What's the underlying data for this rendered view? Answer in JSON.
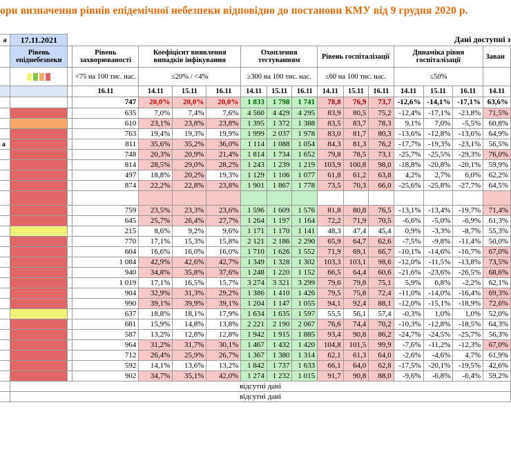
{
  "title": "ори визначення рівнів епідемічної небезпеки відповідно до постанови КМУ від 9 грудня 2020 р.",
  "date_label": "17.11.2021",
  "available_label": "Дані доступні з",
  "headers": {
    "first_col": "а",
    "level": "Рівень епіднебезпеки",
    "incidence": "Рівень захворюваності",
    "detection": "Коефіцієнт виявлення випадків інфікування",
    "testing": "Охоплення тестуванням",
    "hosp": "Рівень госпіталізації",
    "dynamics": "Динаміка рівня госпіталізації",
    "last": "Заван"
  },
  "thresholds": {
    "incidence": "<75 на 100 тис. нас.",
    "detection": "≤20% / <4%",
    "testing": "≥300 на 100 тис. нас.",
    "hosp": "≤60 на 100 тис. нас.",
    "dynamics": "≤50%"
  },
  "dates": {
    "incidence": "16.11",
    "d1": "14.11",
    "d2": "15.11",
    "d3": "16.11",
    "last": "14.11"
  },
  "colors": {
    "red": "#e06666",
    "orange": "#f6a96b",
    "yellow": "#f2f27a",
    "swatches": [
      "#f2f27a",
      "#82c341",
      "#f6a96b",
      "#e06666"
    ]
  },
  "total_row": {
    "first": "",
    "incidence": "747",
    "detection": [
      "20,0%",
      "20,0%",
      "20,0%"
    ],
    "testing": [
      "1 833",
      "1 798",
      "1 741"
    ],
    "hosp": [
      "78,8",
      "76,9",
      "73,7"
    ],
    "dynamics": [
      "-12,6%",
      "-14,1%",
      "-17,1%"
    ],
    "last": "63,6%"
  },
  "rows": [
    {
      "first": "",
      "level": "red",
      "incidence": "635",
      "detection": [
        "7,0%",
        "7,4%",
        "7,6%"
      ],
      "det_hl": false,
      "testing": [
        "4 560",
        "4 429",
        "4 295"
      ],
      "hosp": [
        "83,9",
        "80,5",
        "75,2"
      ],
      "dynamics": [
        "-12,4%",
        "-17,1%",
        "-23,8%"
      ],
      "last": "71,5%",
      "last_hl": true
    },
    {
      "first": "",
      "level": "orange",
      "incidence": "610",
      "detection": [
        "23,1%",
        "23,8%",
        "23,8%"
      ],
      "det_hl": true,
      "testing": [
        "1 395",
        "1 372",
        "1 388"
      ],
      "hosp": [
        "83,5",
        "83,7",
        "78,3"
      ],
      "dynamics": [
        "9,1%",
        "7,0%",
        "-5,5%"
      ],
      "last": "60,8%",
      "last_hl": false
    },
    {
      "first": "",
      "level": "red",
      "incidence": "763",
      "detection": [
        "19,4%",
        "19,3%",
        "19,9%"
      ],
      "det_hl": false,
      "testing": [
        "1 999",
        "2 037",
        "1 978"
      ],
      "hosp": [
        "83,0",
        "81,7",
        "80,3"
      ],
      "dynamics": [
        "-13,6%",
        "-12,8%",
        "-13,6%"
      ],
      "last": "64,9%",
      "last_hl": false
    },
    {
      "first": "а",
      "level": "red",
      "incidence": "811",
      "detection": [
        "35,6%",
        "35,2%",
        "36,0%"
      ],
      "det_hl": true,
      "testing": [
        "1 114",
        "1 088",
        "1 054"
      ],
      "hosp": [
        "84,3",
        "81,3",
        "76,2"
      ],
      "dynamics": [
        "-17,7%",
        "-19,3%",
        "-23,1%"
      ],
      "last": "56,5%",
      "last_hl": false
    },
    {
      "first": "",
      "level": "red",
      "incidence": "748",
      "detection": [
        "20,3%",
        "20,9%",
        "21,4%"
      ],
      "det_hl": true,
      "testing": [
        "1 814",
        "1 734",
        "1 652"
      ],
      "hosp": [
        "79,8",
        "78,5",
        "73,1"
      ],
      "dynamics": [
        "-25,7%",
        "-25,5%",
        "-29,3%"
      ],
      "last": "76,0%",
      "last_hl": true
    },
    {
      "first": "",
      "level": "red",
      "incidence": "814",
      "detection": [
        "28,5%",
        "29,0%",
        "28,2%"
      ],
      "det_hl": true,
      "testing": [
        "1 243",
        "1 239",
        "1 219"
      ],
      "hosp": [
        "103,9",
        "100,8",
        "98,0"
      ],
      "dynamics": [
        "-18,8%",
        "-20,8%",
        "-20,1%"
      ],
      "last": "59,9%",
      "last_hl": false
    },
    {
      "first": "",
      "level": "red",
      "incidence": "497",
      "detection": [
        "18,8%",
        "20,2%",
        "19,3%"
      ],
      "det_hl": false,
      "testing": [
        "1 129",
        "1 106",
        "1 077"
      ],
      "hosp": [
        "61,8",
        "61,2",
        "63,8"
      ],
      "dynamics": [
        "4,2%",
        "2,7%",
        "6,0%"
      ],
      "last": "62,2%",
      "last_hl": false
    },
    {
      "first": "",
      "level": "red",
      "incidence": "874",
      "detection": [
        "22,2%",
        "22,8%",
        "23,8%"
      ],
      "det_hl": true,
      "testing": [
        "1 901",
        "1 867",
        "1 778"
      ],
      "hosp": [
        "73,5",
        "70,3",
        "66,0"
      ],
      "dynamics": [
        "-25,6%",
        "-25,8%",
        "-27,7%"
      ],
      "last": "64,5%",
      "last_hl": false
    },
    {
      "first": "",
      "level": "red",
      "incidence": "",
      "detection": [
        "",
        "",
        ""
      ],
      "det_hl": true,
      "testing": [
        "",
        "",
        ""
      ],
      "hosp": [
        "",
        "",
        ""
      ],
      "dynamics": [
        "",
        "",
        ""
      ],
      "last": "",
      "last_hl": true,
      "blank": true
    },
    {
      "first": "",
      "level": "red",
      "incidence": "759",
      "detection": [
        "23,5%",
        "23,3%",
        "23,6%"
      ],
      "det_hl": true,
      "testing": [
        "1 596",
        "1 609",
        "1 576"
      ],
      "hosp": [
        "81,8",
        "80,8",
        "76,5"
      ],
      "dynamics": [
        "-13,1%",
        "-13,4%",
        "-19,7%"
      ],
      "last": "71,4%",
      "last_hl": true
    },
    {
      "first": "",
      "level": "red",
      "incidence": "645",
      "detection": [
        "25,7%",
        "26,4%",
        "27,7%"
      ],
      "det_hl": true,
      "testing": [
        "1 264",
        "1 197",
        "1 164"
      ],
      "hosp": [
        "72,2",
        "71,9",
        "70,5"
      ],
      "dynamics": [
        "-6,6%",
        "-5,0%",
        "-6,9%"
      ],
      "last": "61,3%",
      "last_hl": false
    },
    {
      "first": "",
      "level": "yellow",
      "incidence": "215",
      "detection": [
        "8,6%",
        "9,2%",
        "9,6%"
      ],
      "det_hl": false,
      "testing": [
        "1 171",
        "1 170",
        "1 141"
      ],
      "hosp": [
        "48,3",
        "47,4",
        "45,4"
      ],
      "dynamics": [
        "0,9%",
        "-3,3%",
        "-8,7%"
      ],
      "last": "55,3%",
      "last_hl": false
    },
    {
      "first": "",
      "level": "red",
      "incidence": "770",
      "detection": [
        "17,1%",
        "15,3%",
        "15,8%"
      ],
      "det_hl": false,
      "testing": [
        "2 121",
        "2 186",
        "2 290"
      ],
      "hosp": [
        "65,9",
        "64,7",
        "62,6"
      ],
      "dynamics": [
        "-7,5%",
        "-9,8%",
        "-11,4%"
      ],
      "last": "50,0%",
      "last_hl": false
    },
    {
      "first": "",
      "level": "red",
      "incidence": "604",
      "detection": [
        "16,6%",
        "16,0%",
        "16,0%"
      ],
      "det_hl": false,
      "testing": [
        "1 710",
        "1 626",
        "1 552"
      ],
      "hosp": [
        "71,9",
        "69,1",
        "66,7"
      ],
      "dynamics": [
        "-10,1%",
        "-14,6%",
        "-16,7%"
      ],
      "last": "67,0%",
      "last_hl": true
    },
    {
      "first": "",
      "level": "red",
      "incidence": "1 084",
      "detection": [
        "42,9%",
        "42,6%",
        "42,7%"
      ],
      "det_hl": true,
      "testing": [
        "1 349",
        "1 328",
        "1 302"
      ],
      "hosp": [
        "103,3",
        "103,1",
        "98,6"
      ],
      "dynamics": [
        "-12,0%",
        "-11,5%",
        "-13,8%"
      ],
      "last": "73,5%",
      "last_hl": true
    },
    {
      "first": "",
      "level": "red",
      "incidence": "940",
      "detection": [
        "34,8%",
        "35,8%",
        "37,6%"
      ],
      "det_hl": true,
      "testing": [
        "1 248",
        "1 220",
        "1 152"
      ],
      "hosp": [
        "66,5",
        "64,4",
        "60,6"
      ],
      "dynamics": [
        "-21,6%",
        "-23,6%",
        "-26,5%"
      ],
      "last": "68,6%",
      "last_hl": true
    },
    {
      "first": "",
      "level": "red",
      "incidence": "1 019",
      "detection": [
        "17,1%",
        "16,5%",
        "15,7%"
      ],
      "det_hl": false,
      "testing": [
        "3 274",
        "3 321",
        "3 299"
      ],
      "hosp": [
        "79,6",
        "79,8",
        "75,1"
      ],
      "dynamics": [
        "5,9%",
        "6,8%",
        "-2,2%"
      ],
      "last": "62,1%",
      "last_hl": false
    },
    {
      "first": "",
      "level": "red",
      "incidence": "904",
      "detection": [
        "32,9%",
        "31,3%",
        "29,2%"
      ],
      "det_hl": true,
      "testing": [
        "1 386",
        "1 410",
        "1 426"
      ],
      "hosp": [
        "79,5",
        "75,8",
        "72,4"
      ],
      "dynamics": [
        "-11,0%",
        "-14,0%",
        "-16,4%"
      ],
      "last": "69,3%",
      "last_hl": true
    },
    {
      "first": "",
      "level": "red",
      "incidence": "990",
      "detection": [
        "39,1%",
        "39,9%",
        "39,1%"
      ],
      "det_hl": true,
      "testing": [
        "1 204",
        "1 147",
        "1 055"
      ],
      "hosp": [
        "94,1",
        "92,4",
        "88,1"
      ],
      "dynamics": [
        "-12,0%",
        "-15,1%",
        "-18,9%"
      ],
      "last": "72,6%",
      "last_hl": true
    },
    {
      "first": "",
      "level": "yellow",
      "incidence": "637",
      "detection": [
        "18,8%",
        "18,1%",
        "17,9%"
      ],
      "det_hl": false,
      "testing": [
        "1 634",
        "1 635",
        "1 597"
      ],
      "hosp": [
        "55,5",
        "56,1",
        "57,4"
      ],
      "dynamics": [
        "-0,3%",
        "1,0%",
        "1,0%"
      ],
      "last": "52,0%",
      "last_hl": false
    },
    {
      "first": "",
      "level": "red",
      "incidence": "681",
      "detection": [
        "15,9%",
        "14,8%",
        "13,8%"
      ],
      "det_hl": false,
      "testing": [
        "2 221",
        "2 190",
        "2 067"
      ],
      "hosp": [
        "76,6",
        "74,4",
        "70,2"
      ],
      "dynamics": [
        "-10,3%",
        "-12,8%",
        "-18,5%"
      ],
      "last": "64,3%",
      "last_hl": false
    },
    {
      "first": "",
      "level": "red",
      "incidence": "587",
      "detection": [
        "13,2%",
        "12,8%",
        "12,8%"
      ],
      "det_hl": false,
      "testing": [
        "1 942",
        "1 915",
        "1 885"
      ],
      "hosp": [
        "93,4",
        "90,8",
        "86,2"
      ],
      "dynamics": [
        "-24,7%",
        "-24,5%",
        "-25,7%"
      ],
      "last": "56,3%",
      "last_hl": false
    },
    {
      "first": "",
      "level": "red",
      "incidence": "964",
      "detection": [
        "31,2%",
        "31,7%",
        "30,1%"
      ],
      "det_hl": true,
      "testing": [
        "1 467",
        "1 432",
        "1 420"
      ],
      "hosp": [
        "104,8",
        "101,5",
        "99,9"
      ],
      "dynamics": [
        "-7,6%",
        "-11,2%",
        "-12,3%"
      ],
      "last": "67,0%",
      "last_hl": true
    },
    {
      "first": "",
      "level": "red",
      "incidence": "712",
      "detection": [
        "26,4%",
        "25,9%",
        "26,7%"
      ],
      "det_hl": true,
      "testing": [
        "1 367",
        "1 380",
        "1 314"
      ],
      "hosp": [
        "62,1",
        "61,3",
        "64,0"
      ],
      "dynamics": [
        "-2,6%",
        "-4,6%",
        "4,7%"
      ],
      "last": "61,9%",
      "last_hl": false
    },
    {
      "first": "",
      "level": "red",
      "incidence": "592",
      "detection": [
        "14,1%",
        "13,6%",
        "13,2%"
      ],
      "det_hl": false,
      "testing": [
        "1 842",
        "1 737",
        "1 633"
      ],
      "hosp": [
        "66,1",
        "64,0",
        "62,8"
      ],
      "dynamics": [
        "-17,5%",
        "-20,1%",
        "-19,5%"
      ],
      "last": "42,6%",
      "last_hl": false
    },
    {
      "first": "",
      "level": "red",
      "incidence": "902",
      "detection": [
        "34,7%",
        "35,1%",
        "42,0%"
      ],
      "det_hl": true,
      "testing": [
        "1 274",
        "1 232",
        "1 015"
      ],
      "hosp": [
        "91,7",
        "90,8",
        "88,0"
      ],
      "dynamics": [
        "-9,6%",
        "-6,8%",
        "-6,4%"
      ],
      "last": "59,2%",
      "last_hl": false
    }
  ],
  "absent_label": "відсутні дані"
}
